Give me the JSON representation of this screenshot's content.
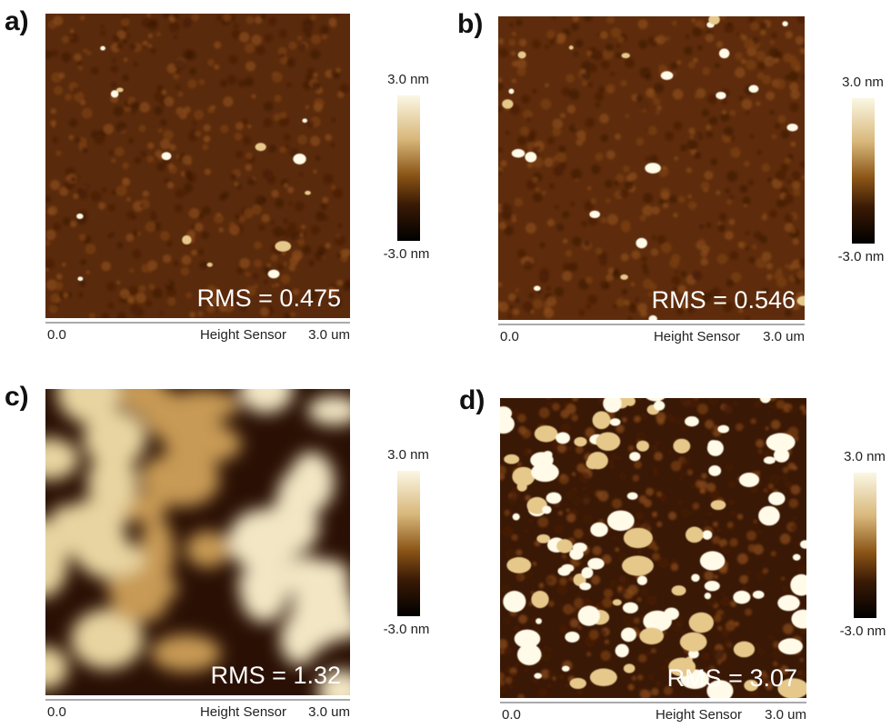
{
  "panels": [
    {
      "label": "a)",
      "rms": "RMS = 0.475",
      "scale_max": "3.0 nm",
      "scale_min": "-3.0 nm",
      "axis_start": "0.0",
      "axis_title": "Height Sensor",
      "axis_end": "3.0 um"
    },
    {
      "label": "b)",
      "rms": "RMS = 0.546",
      "scale_max": "3.0 nm",
      "scale_min": "-3.0 nm",
      "axis_start": "0.0",
      "axis_title": "Height Sensor",
      "axis_end": "3.0 um"
    },
    {
      "label": "c)",
      "rms": "RMS = 1.32",
      "scale_max": "3.0 nm",
      "scale_min": "-3.0 nm",
      "axis_start": "0.0",
      "axis_title": "Height Sensor",
      "axis_end": "3.0 um"
    },
    {
      "label": "d)",
      "rms": "RMS = 3.07",
      "scale_max": "3.0 nm",
      "scale_min": "-3.0 nm",
      "axis_start": "0.0",
      "axis_title": "Height Sensor",
      "axis_end": "3.0 um"
    }
  ]
}
